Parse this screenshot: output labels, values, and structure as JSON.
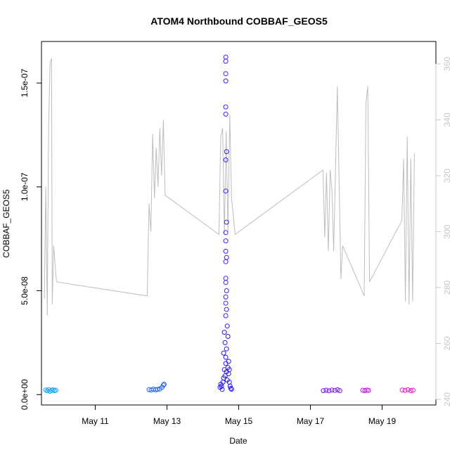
{
  "chart_data": {
    "type": "scatter",
    "title": "ATOM4 Northbound COBBAF_GEOS5",
    "xlabel": "Date",
    "ylabel": "COBBAF_GEOS5",
    "x_ticks": [
      "May 11",
      "May 13",
      "May 15",
      "May 17",
      "May 19"
    ],
    "x_tick_days": [
      11,
      13,
      15,
      17,
      19
    ],
    "xlim_days": [
      9.5,
      20.5
    ],
    "y_ticks": [
      "0.0e+00",
      "5.0e-08",
      "1.0e-07",
      "1.5e-07"
    ],
    "y_tick_values": [
      0,
      5e-08,
      1e-07,
      1.5e-07
    ],
    "ylim": [
      -5e-09,
      1.7e-07
    ],
    "y2_ticks": [
      "240",
      "260",
      "280",
      "300",
      "320",
      "340",
      "360"
    ],
    "y2_tick_values": [
      240,
      260,
      280,
      300,
      320,
      340,
      360
    ],
    "y2lim": [
      238,
      368
    ],
    "secondary_line_color": "#bebebe",
    "series": [
      {
        "color": "#1aa6ee",
        "x": [
          9.62,
          9.66,
          9.7,
          9.74,
          9.78,
          9.82,
          9.86,
          9.9
        ],
        "y": [
          2.2e-09,
          1.8e-09,
          2.4e-09,
          1.6e-09,
          2e-09,
          2.3e-09,
          1.9e-09,
          2.1e-09
        ]
      },
      {
        "color": "#2060ee",
        "x": [
          12.5,
          12.56,
          12.62,
          12.68,
          12.74,
          12.8,
          12.86,
          12.9,
          12.92
        ],
        "y": [
          2.4e-09,
          2.2e-09,
          2.6e-09,
          2.3e-09,
          2.5e-09,
          2.7e-09,
          3.5e-09,
          4.5e-09,
          5e-09
        ]
      },
      {
        "color": "#2a17f2",
        "x": [
          14.48,
          14.5,
          14.52,
          14.54,
          14.56,
          14.58,
          14.6,
          14.62,
          14.64,
          14.66,
          14.68,
          14.7,
          14.72,
          14.74,
          14.76,
          14.78,
          14.8,
          14.58,
          14.6,
          14.62,
          14.64,
          14.66,
          14.68,
          14.7,
          14.72,
          14.74
        ],
        "y": [
          3.5e-09,
          5e-09,
          4e-09,
          2.5e-09,
          6e-09,
          8e-09,
          1.2e-08,
          9e-09,
          1.5e-08,
          1.1e-08,
          7e-09,
          1.3e-08,
          1e-08,
          6e-09,
          4e-09,
          3e-09,
          2.6e-09,
          2e-08,
          3e-08,
          2.5e-08,
          1.8e-08,
          2.2e-08,
          3.3e-08,
          2.8e-08,
          1.6e-08,
          1.2e-08
        ]
      },
      {
        "color": "#4b1cf0",
        "x": [
          14.64,
          14.64,
          14.64,
          14.64,
          14.64,
          14.64,
          14.66,
          14.64,
          14.64,
          14.66,
          14.64,
          14.64,
          14.64,
          14.64,
          14.66,
          14.64,
          14.64,
          14.66,
          14.64,
          14.64,
          14.66,
          14.64
        ],
        "y": [
          1.625e-07,
          1.605e-07,
          1.545e-07,
          1.51e-07,
          1.385e-07,
          1.35e-07,
          1.17e-07,
          1.13e-07,
          9.8e-08,
          8.3e-08,
          7.8e-08,
          7.4e-08,
          6.9e-08,
          6.4e-08,
          6.6e-08,
          5.6e-08,
          5.4e-08,
          5e-08,
          4.7e-08,
          4.4e-08,
          4.1e-08,
          3.8e-08
        ]
      },
      {
        "color": "#7a1cf0",
        "x": [
          17.36,
          17.44,
          17.52,
          17.6,
          17.68,
          17.76,
          17.82
        ],
        "y": [
          1.9e-09,
          2.1e-09,
          1.8e-09,
          2.2e-09,
          2e-09,
          2.3e-09,
          1.9e-09
        ]
      },
      {
        "color": "#c21ae8",
        "x": [
          18.46,
          18.52,
          18.58,
          18.62
        ],
        "y": [
          2.1e-09,
          1.9e-09,
          2.2e-09,
          2e-09
        ]
      },
      {
        "color": "#ee1cc8",
        "x": [
          19.56,
          19.64,
          19.72,
          19.8,
          19.86
        ],
        "y": [
          2.2e-09,
          2e-09,
          2.3e-09,
          1.9e-09,
          2.1e-09
        ]
      }
    ],
    "secondary_series": {
      "color": "#bebebe",
      "x": [
        9.58,
        9.62,
        9.66,
        9.7,
        9.74,
        9.78,
        9.8,
        9.84,
        9.88,
        9.92,
        12.45,
        12.5,
        12.55,
        12.6,
        12.65,
        12.7,
        12.75,
        12.8,
        12.85,
        12.9,
        12.95,
        14.45,
        14.5,
        14.55,
        14.6,
        14.65,
        14.7,
        14.75,
        14.8,
        14.9,
        17.35,
        17.4,
        17.45,
        17.5,
        17.55,
        17.6,
        17.65,
        17.75,
        17.85,
        17.9,
        18.5,
        18.55,
        18.6,
        18.65,
        19.55,
        19.6,
        19.65,
        19.7,
        19.75,
        19.8,
        19.85,
        19.9
      ],
      "y": [
        276,
        316,
        270,
        338,
        360,
        362,
        274,
        295,
        288,
        282,
        277,
        310,
        300,
        335,
        312,
        330,
        316,
        337,
        320,
        340,
        313,
        299,
        334,
        337,
        299,
        336,
        300,
        342,
        312,
        299,
        322,
        298,
        321,
        293,
        322,
        315,
        293,
        352,
        283,
        295,
        277,
        346,
        352,
        282,
        304,
        326,
        275,
        334,
        274,
        326,
        275,
        328
      ]
    }
  }
}
